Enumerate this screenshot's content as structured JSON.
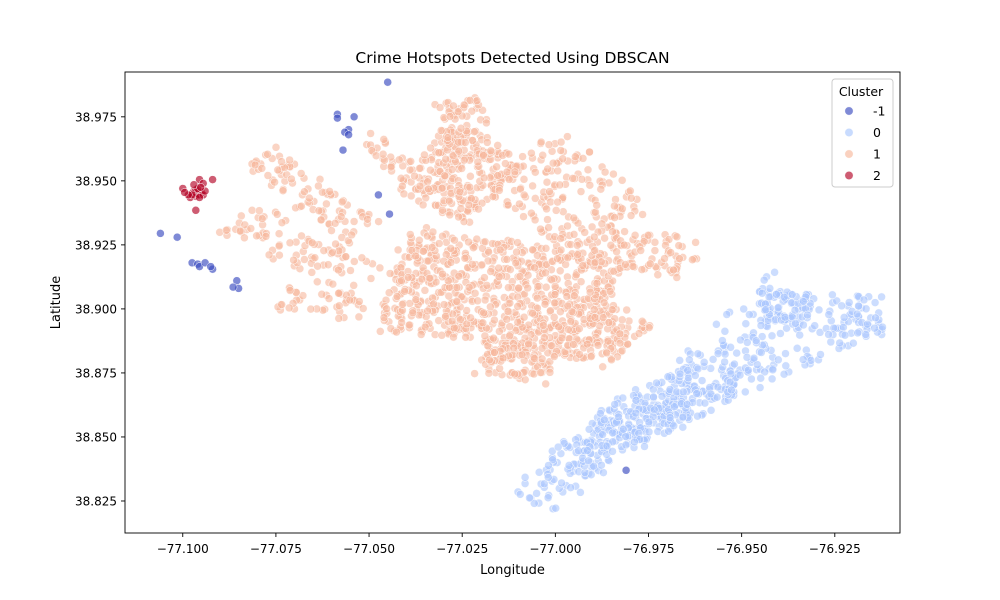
{
  "chart_data": {
    "type": "scatter",
    "title": "Crime Hotspots Detected Using DBSCAN",
    "xlabel": "Longitude",
    "ylabel": "Latitude",
    "xlim": [
      -77.1155,
      -76.9075
    ],
    "ylim": [
      38.8125,
      38.9925
    ],
    "xticks": [
      -77.1,
      -77.075,
      -77.05,
      -77.025,
      -77.0,
      -76.975,
      -76.95,
      -76.925
    ],
    "xtick_labels": [
      "−77.100",
      "−77.075",
      "−77.050",
      "−77.025",
      "−77.000",
      "−76.975",
      "−76.950",
      "−76.925"
    ],
    "yticks": [
      38.825,
      38.85,
      38.875,
      38.9,
      38.925,
      38.95,
      38.975
    ],
    "ytick_labels": [
      "38.825",
      "38.850",
      "38.875",
      "38.900",
      "38.925",
      "38.950",
      "38.975"
    ],
    "grid": false,
    "legend": {
      "title": "Cluster",
      "placement": "top-right",
      "entries": [
        {
          "label": "-1",
          "color": "#3b4cc0"
        },
        {
          "label": "0",
          "color": "#aac7fd"
        },
        {
          "label": "1",
          "color": "#f7b89c"
        },
        {
          "label": "2",
          "color": "#b40426"
        }
      ]
    },
    "series": [
      {
        "name": "-1",
        "color": "#3b4cc0",
        "opacity": 0.65,
        "points": [
          [
            -77.106,
            38.9295
          ],
          [
            -77.1015,
            38.928
          ],
          [
            -77.0975,
            38.918
          ],
          [
            -77.096,
            38.9175
          ],
          [
            -77.0955,
            38.9165
          ],
          [
            -77.094,
            38.918
          ],
          [
            -77.092,
            38.9155
          ],
          [
            -77.0925,
            38.9165
          ],
          [
            -77.0855,
            38.911
          ],
          [
            -77.085,
            38.908
          ],
          [
            -77.0865,
            38.9085
          ],
          [
            -77.045,
            38.9885
          ],
          [
            -77.0585,
            38.976
          ],
          [
            -77.0585,
            38.9745
          ],
          [
            -77.054,
            38.975
          ],
          [
            -77.0555,
            38.97
          ],
          [
            -77.0565,
            38.969
          ],
          [
            -77.0555,
            38.968
          ],
          [
            -77.057,
            38.962
          ],
          [
            -77.0475,
            38.9445
          ],
          [
            -77.0445,
            38.937
          ],
          [
            -76.981,
            38.837
          ]
        ]
      },
      {
        "name": "0",
        "color": "#aac7fd",
        "opacity": 0.6,
        "bands": [
          {
            "from": [
              -77.007,
              38.8255
            ],
            "to": [
              -76.97,
              38.869
            ],
            "width": 0.015,
            "count": 190
          },
          {
            "from": [
              -76.995,
              38.843
            ],
            "to": [
              -76.9135,
              38.8965
            ],
            "width": 0.01,
            "count": 140
          },
          {
            "from": [
              -76.972,
              38.8565
            ],
            "to": [
              -76.935,
              38.9085
            ],
            "width": 0.018,
            "count": 170
          },
          {
            "from": [
              -76.945,
              38.8985
            ],
            "to": [
              -76.912,
              38.8975
            ],
            "width": 0.017,
            "count": 110
          },
          {
            "from": [
              -76.984,
              38.85
            ],
            "to": [
              -76.96,
              38.872
            ],
            "width": 0.016,
            "count": 80
          }
        ]
      },
      {
        "name": "1",
        "color": "#f7b89c",
        "opacity": 0.6,
        "bands": [
          {
            "from": [
              -77.044,
              38.912
            ],
            "to": [
              -76.986,
              38.9
            ],
            "width": 0.042,
            "count": 700
          },
          {
            "from": [
              -77.034,
              38.94
            ],
            "to": [
              -77.018,
              38.965
            ],
            "width": 0.025,
            "count": 230
          },
          {
            "from": [
              -77.026,
              38.982
            ],
            "to": [
              -77.022,
              38.958
            ],
            "width": 0.012,
            "count": 70
          },
          {
            "from": [
              -77.01,
              38.96
            ],
            "to": [
              -76.985,
              38.93
            ],
            "width": 0.03,
            "count": 170
          },
          {
            "from": [
              -77.02,
              38.882
            ],
            "to": [
              -77.0,
              38.878
            ],
            "width": 0.014,
            "count": 90
          },
          {
            "from": [
              -77.0,
              38.9
            ],
            "to": [
              -76.98,
              38.885
            ],
            "width": 0.022,
            "count": 130
          },
          {
            "from": [
              -76.99,
              38.925
            ],
            "to": [
              -76.963,
              38.919
            ],
            "width": 0.016,
            "count": 90
          },
          {
            "from": [
              -77.08,
              38.96
            ],
            "to": [
              -77.052,
              38.93
            ],
            "width": 0.012,
            "count": 90
          },
          {
            "from": [
              -77.085,
              38.935
            ],
            "to": [
              -77.05,
              38.91
            ],
            "width": 0.015,
            "count": 90
          },
          {
            "from": [
              -77.075,
              38.905
            ],
            "to": [
              -77.052,
              38.9
            ],
            "width": 0.01,
            "count": 40
          },
          {
            "from": [
              -77.05,
              38.968
            ],
            "to": [
              -77.04,
              38.955
            ],
            "width": 0.01,
            "count": 25
          }
        ]
      },
      {
        "name": "2",
        "color": "#b40426",
        "opacity": 0.65,
        "points": [
          [
            -77.097,
            38.946
          ],
          [
            -77.096,
            38.945
          ],
          [
            -77.0965,
            38.944
          ],
          [
            -77.0955,
            38.9445
          ],
          [
            -77.0975,
            38.945
          ],
          [
            -77.095,
            38.9455
          ],
          [
            -77.0945,
            38.9445
          ],
          [
            -77.098,
            38.9435
          ],
          [
            -77.0965,
            38.9465
          ],
          [
            -77.0955,
            38.9435
          ],
          [
            -77.0975,
            38.9445
          ],
          [
            -77.096,
            38.947
          ],
          [
            -77.0985,
            38.9445
          ],
          [
            -77.1,
            38.947
          ],
          [
            -77.092,
            38.9505
          ],
          [
            -77.0955,
            38.9505
          ],
          [
            -77.0945,
            38.949
          ],
          [
            -77.0965,
            38.9385
          ],
          [
            -77.097,
            38.9485
          ],
          [
            -77.0995,
            38.9455
          ],
          [
            -77.094,
            38.946
          ],
          [
            -77.0952,
            38.9475
          ]
        ]
      }
    ]
  }
}
